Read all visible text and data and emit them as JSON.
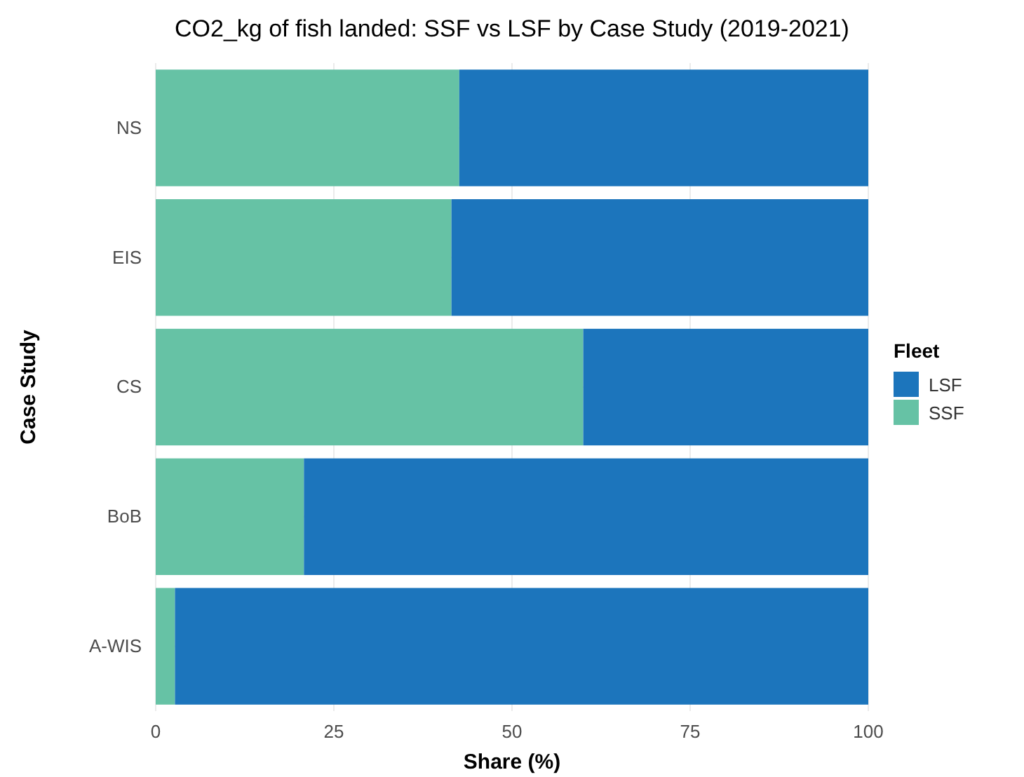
{
  "chart_data": {
    "type": "bar",
    "title": "CO2_kg of fish landed: SSF vs LSF by Case Study (2019-2021)",
    "orientation": "horizontal",
    "stacked": true,
    "categories": [
      "NS",
      "EIS",
      "CS",
      "BoB",
      "A-WIS"
    ],
    "series": [
      {
        "name": "SSF",
        "color": "#66c2a5",
        "values": [
          42.6,
          41.5,
          60.0,
          20.8,
          2.7
        ]
      },
      {
        "name": "LSF",
        "color": "#1c75bc",
        "values": [
          57.4,
          58.5,
          40.0,
          79.2,
          97.3
        ]
      }
    ],
    "xlim": [
      0,
      100
    ],
    "xticks": [
      0,
      25,
      50,
      75,
      100
    ],
    "xlabel": "Share (%)",
    "ylabel": "Case Study",
    "legend_title": "Fleet",
    "legend": "right",
    "grid": true
  }
}
